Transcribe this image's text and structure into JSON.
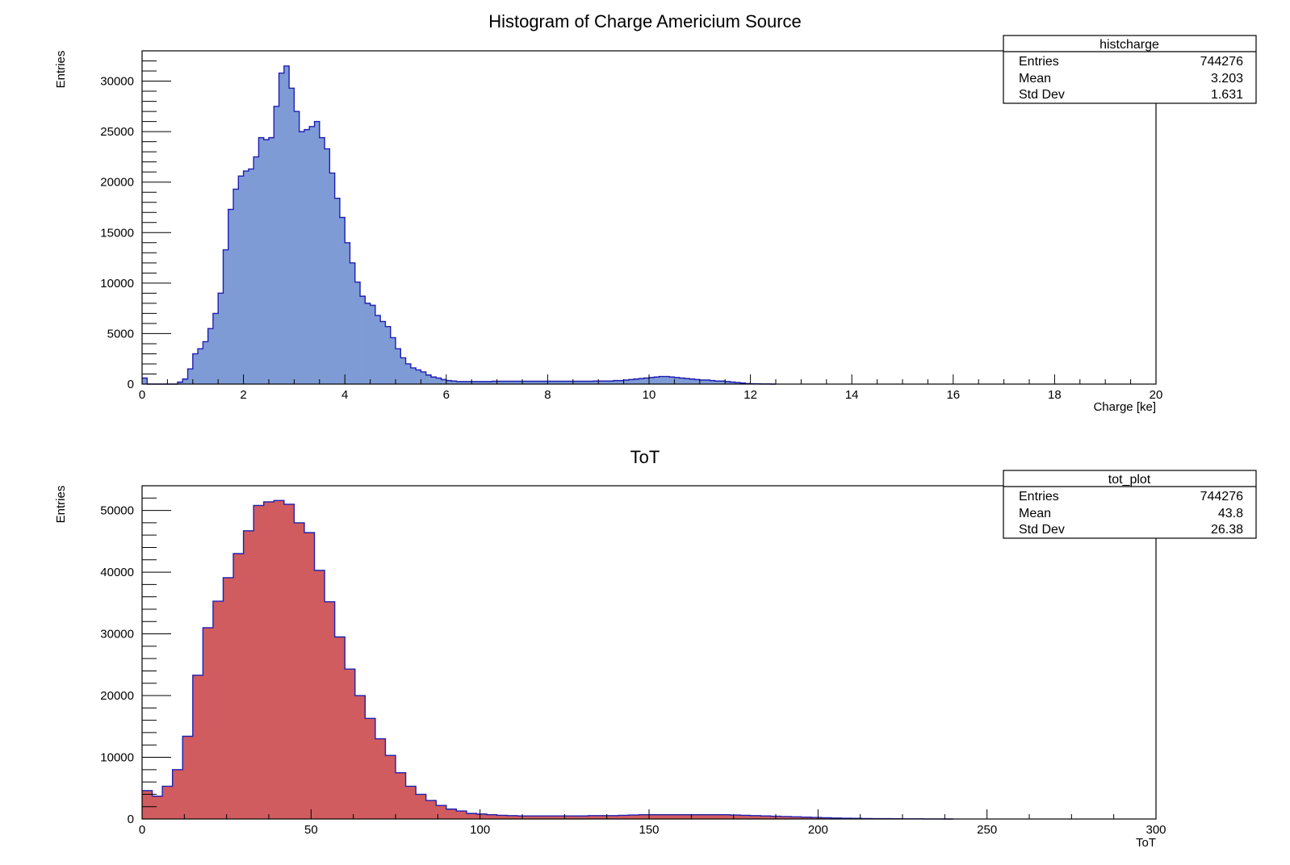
{
  "chart_data": [
    {
      "type": "bar",
      "title": "Histogram of Charge Americium Source",
      "xlabel": "Charge [ke]",
      "ylabel": "Entries",
      "xlim": [
        0,
        20
      ],
      "ylim": [
        0,
        33000
      ],
      "x_ticks": [
        0,
        2,
        4,
        6,
        8,
        10,
        12,
        14,
        16,
        18,
        20
      ],
      "y_ticks": [
        0,
        5000,
        10000,
        15000,
        20000,
        25000,
        30000
      ],
      "grid": false,
      "fill_color": "#7f9bd6",
      "line_color": "#1f1fb0",
      "bin_width": 0.1,
      "x_start": 0,
      "values": [
        600,
        0,
        0,
        0,
        0,
        0,
        0,
        200,
        500,
        1500,
        3000,
        3500,
        4200,
        5500,
        7000,
        9000,
        13300,
        17300,
        19300,
        20600,
        21100,
        21300,
        22500,
        24400,
        24200,
        24400,
        27500,
        30800,
        31500,
        29300,
        27000,
        25000,
        25200,
        25500,
        26000,
        24400,
        23300,
        20900,
        18400,
        16500,
        14000,
        12000,
        10100,
        8700,
        8000,
        7800,
        6800,
        6200,
        5700,
        4600,
        3500,
        2600,
        2000,
        1600,
        1400,
        1200,
        900,
        700,
        600,
        450,
        350,
        300,
        250,
        250,
        250,
        250,
        250,
        250,
        250,
        280,
        280,
        280,
        280,
        280,
        280,
        280,
        280,
        280,
        280,
        280,
        280,
        280,
        280,
        280,
        280,
        280,
        280,
        280,
        280,
        300,
        300,
        300,
        300,
        350,
        350,
        400,
        450,
        500,
        550,
        600,
        650,
        700,
        750,
        750,
        700,
        650,
        600,
        550,
        500,
        450,
        400,
        400,
        350,
        300,
        300,
        250,
        200,
        150,
        100,
        50,
        30,
        20,
        10,
        10,
        0
      ],
      "legend": {
        "placement": "top-right",
        "name": "histcharge",
        "rows": [
          {
            "label": "Entries",
            "value": "744276"
          },
          {
            "label": "Mean",
            "value": "3.203"
          },
          {
            "label": "Std Dev",
            "value": "1.631"
          }
        ]
      }
    },
    {
      "type": "bar",
      "title": "ToT",
      "xlabel": "ToT",
      "ylabel": "Entries",
      "xlim": [
        0,
        300
      ],
      "ylim": [
        0,
        54000
      ],
      "x_ticks": [
        0,
        50,
        100,
        150,
        200,
        250,
        300
      ],
      "y_ticks": [
        0,
        10000,
        20000,
        30000,
        40000,
        50000
      ],
      "grid": false,
      "fill_color": "#d05c5f",
      "line_color": "#1f1fb0",
      "bin_width": 3,
      "x_start": 0,
      "values": [
        4600,
        3700,
        5300,
        8000,
        13400,
        23300,
        31000,
        35300,
        39100,
        43000,
        46700,
        50800,
        51400,
        51600,
        51000,
        48000,
        46400,
        40300,
        35200,
        29500,
        24300,
        20000,
        16300,
        13000,
        10300,
        7500,
        5300,
        4000,
        3000,
        2200,
        1600,
        1300,
        900,
        800,
        700,
        600,
        550,
        500,
        500,
        500,
        500,
        500,
        500,
        500,
        550,
        550,
        550,
        600,
        650,
        700,
        700,
        700,
        700,
        700,
        700,
        700,
        700,
        700,
        650,
        600,
        550,
        500,
        450,
        400,
        350,
        300,
        250,
        200,
        150,
        120,
        100,
        80,
        60,
        50,
        40,
        30,
        20,
        10,
        5,
        0
      ],
      "legend": {
        "placement": "top-right",
        "name": "tot_plot",
        "rows": [
          {
            "label": "Entries",
            "value": "744276"
          },
          {
            "label": "Mean",
            "value": "43.8"
          },
          {
            "label": "Std Dev",
            "value": "26.38"
          }
        ]
      }
    }
  ]
}
